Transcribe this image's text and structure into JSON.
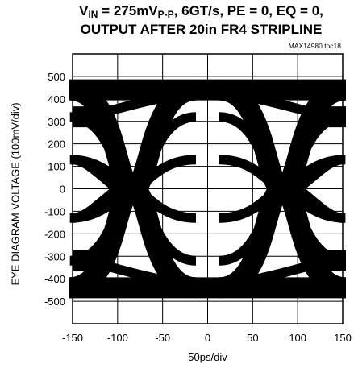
{
  "title": {
    "line1_prefix": "V",
    "line1_sub1": "IN",
    "line1_mid": " = 275mV",
    "line1_sub2": "P-P",
    "line1_suffix": ", 6GT/s, PE = 0, EQ = 0,",
    "line2": "OUTPUT AFTER 20in FR4 STRIPLINE"
  },
  "tag": "MAX14980 toc18",
  "chart_data": {
    "type": "line",
    "title": "VIN = 275mVP-P, 6GT/s, PE = 0, EQ = 0, OUTPUT AFTER 20in FR4 STRIPLINE",
    "xlabel": "50ps/div",
    "ylabel": "EYE DIAGRAM VOLTAGE (100mV/div)",
    "xlim": [
      -150,
      150
    ],
    "ylim": [
      -600,
      600
    ],
    "x_ticks": [
      -150,
      -100,
      -50,
      0,
      50,
      100,
      150
    ],
    "y_ticks": [
      500,
      400,
      300,
      200,
      100,
      0,
      -100,
      -200,
      -300,
      -400,
      -500
    ],
    "grid": true,
    "eye_crossings_ps": [
      -83,
      83
    ],
    "levels_mV": [
      440,
      320,
      130,
      -130,
      -320,
      -440
    ],
    "series": [
      {
        "values": [
          [
            -150,
            300
          ],
          [
            -100,
            260
          ],
          [
            -50,
            270
          ],
          [
            0,
            440
          ],
          [
            50,
            460
          ],
          [
            100,
            440
          ],
          [
            150,
            430
          ]
        ]
      },
      {
        "values": [
          [
            -150,
            150
          ],
          [
            -100,
            20
          ],
          [
            -50,
            -220
          ],
          [
            0,
            -330
          ],
          [
            50,
            -260
          ],
          [
            100,
            0
          ],
          [
            150,
            230
          ]
        ]
      },
      {
        "values": [
          [
            -150,
            -150
          ],
          [
            -100,
            -20
          ],
          [
            -50,
            220
          ],
          [
            0,
            330
          ],
          [
            50,
            260
          ],
          [
            100,
            0
          ],
          [
            150,
            -230
          ]
        ]
      },
      {
        "values": [
          [
            -150,
            -300
          ],
          [
            -100,
            -260
          ],
          [
            -50,
            -270
          ],
          [
            0,
            -440
          ],
          [
            50,
            -460
          ],
          [
            100,
            -440
          ],
          [
            150,
            -430
          ]
        ]
      }
    ]
  }
}
